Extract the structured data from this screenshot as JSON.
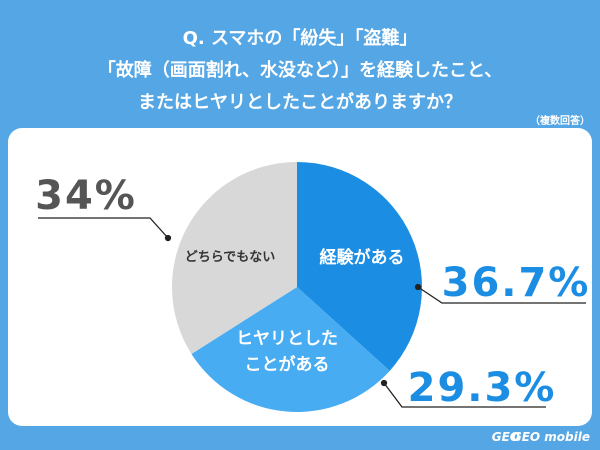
{
  "chart_data": {
    "type": "pie",
    "title": [
      "Q. スマホの「紛失」「盗難」",
      "「故障（画面割れ、水没など）」を経験したこと、",
      "またはヒヤリとしたことがありますか？"
    ],
    "note": "（複数回答）",
    "categories": [
      "経験がある",
      "ヒヤリとした\nことがある",
      "どちらでもない"
    ],
    "values": [
      36.7,
      29.3,
      34
    ],
    "value_labels": [
      "36.7%",
      "29.3%",
      "34%"
    ],
    "colors": [
      "#1b8de3",
      "#48acf2",
      "#d8d8d8"
    ],
    "category_label_colors": [
      "#ffffff",
      "#ffffff",
      "#333333"
    ],
    "value_label_colors": [
      "#1b8de3",
      "#1b8de3",
      "#555555"
    ],
    "footer": [
      "GEO",
      "GEO mobile"
    ]
  }
}
